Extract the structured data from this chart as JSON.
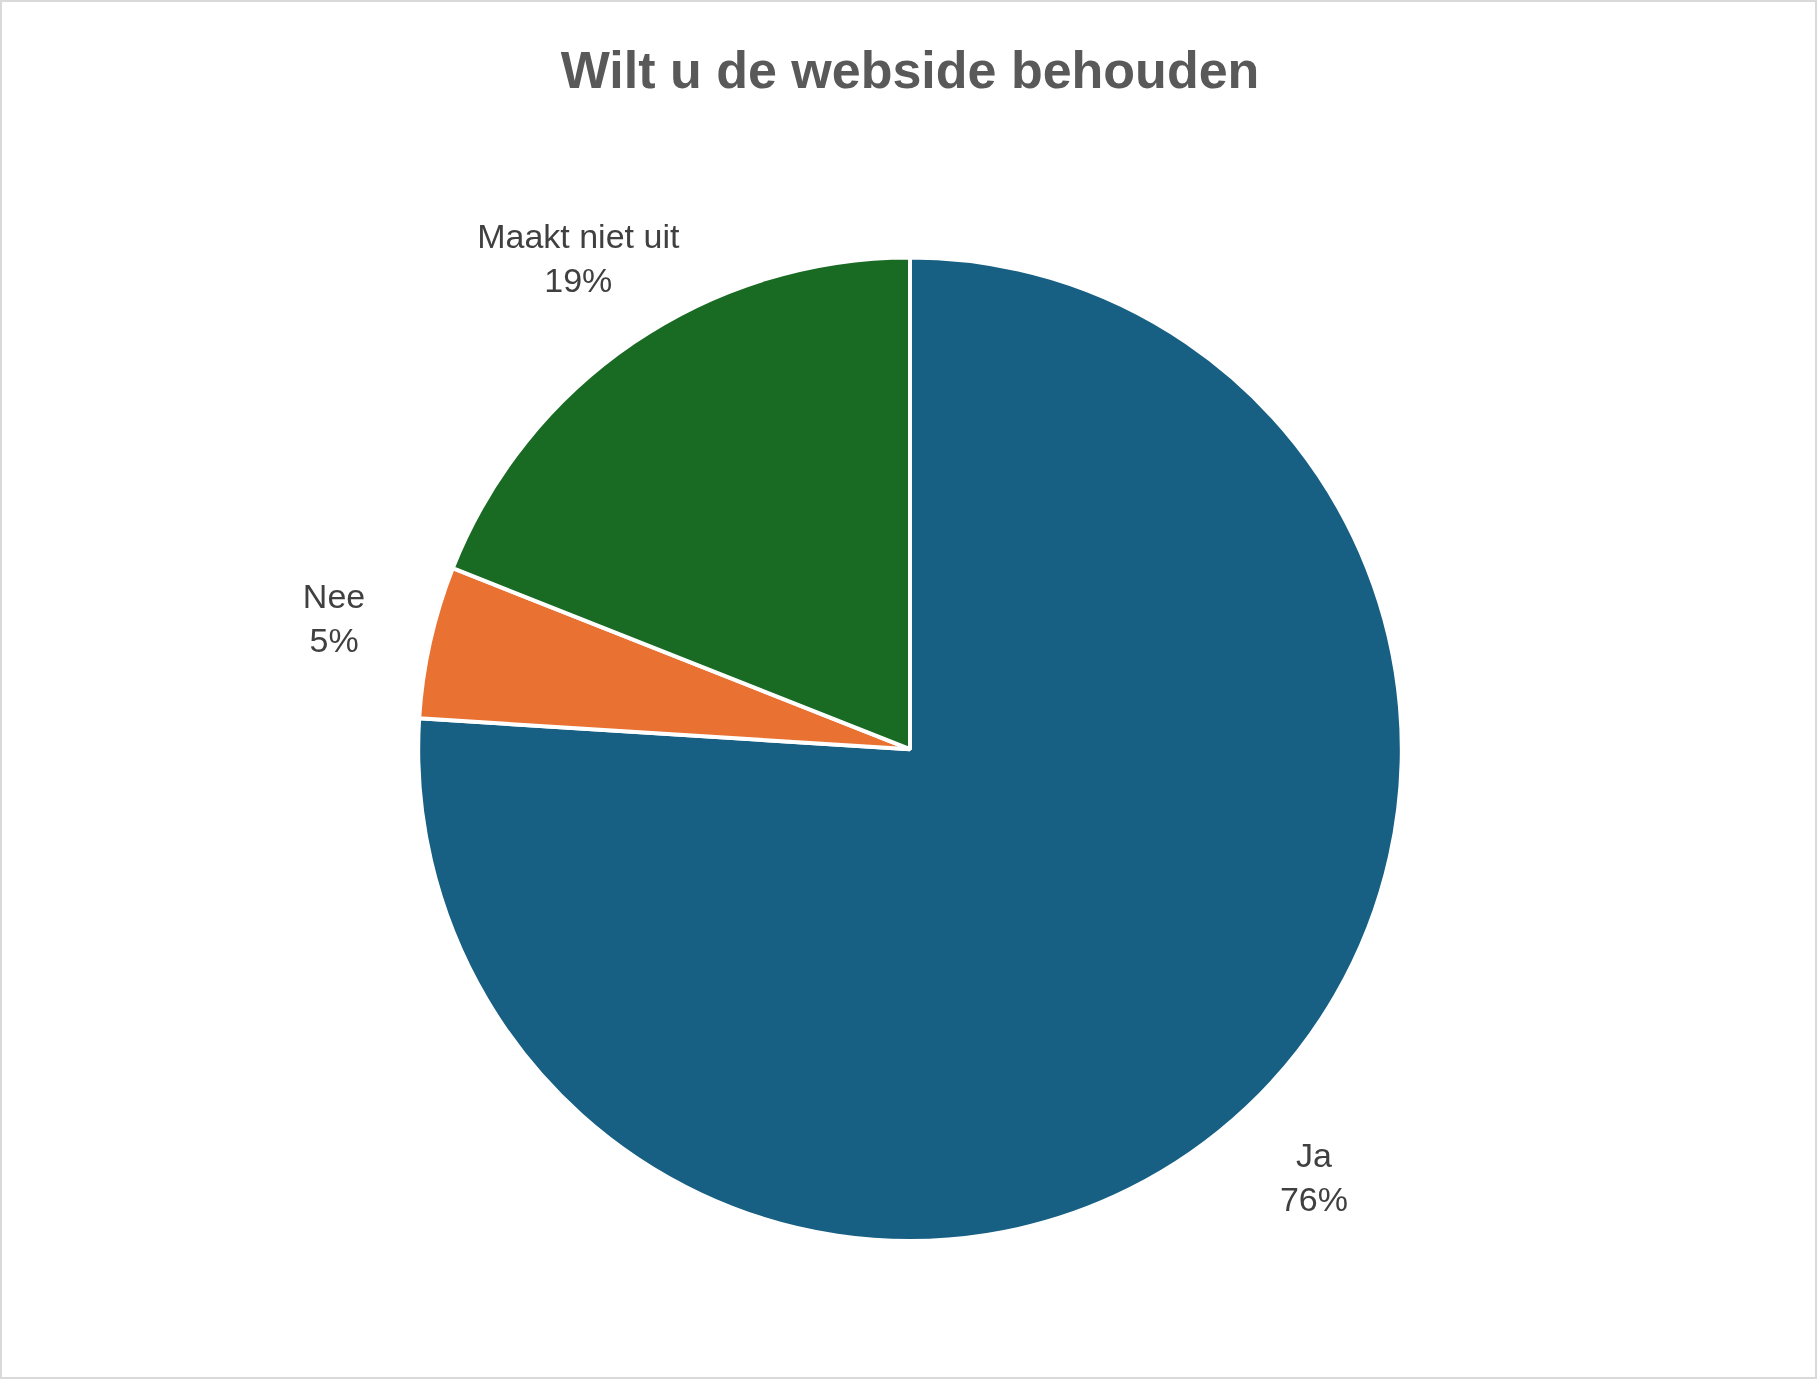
{
  "chart_data": {
    "type": "pie",
    "title": "Wilt u de webside behouden",
    "categories": [
      "Ja",
      "Nee",
      "Maakt niet uit"
    ],
    "values": [
      76,
      5,
      19
    ],
    "value_labels": [
      "76%",
      "5%",
      "19%"
    ],
    "colors": [
      "#175f83",
      "#e97132",
      "#196b24"
    ],
    "legend": false
  }
}
